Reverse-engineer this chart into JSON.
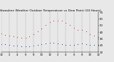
{
  "title": "Milwaukee Weather Outdoor Temperature vs Dew Point (24 Hours)",
  "title_fontsize": 3.2,
  "bg_color": "#e8e8e8",
  "plot_bg_color": "#e8e8e8",
  "grid_color": "#888888",
  "hours": [
    0,
    1,
    2,
    3,
    4,
    5,
    6,
    7,
    8,
    9,
    10,
    11,
    12,
    13,
    14,
    15,
    16,
    17,
    18,
    19,
    20,
    21,
    22,
    23,
    24
  ],
  "temp": [
    38,
    36,
    35,
    34,
    33,
    32,
    32,
    34,
    37,
    41,
    46,
    51,
    55,
    57,
    58,
    57,
    54,
    51,
    47,
    44,
    43,
    41,
    37,
    35,
    33
  ],
  "dew": [
    22,
    22,
    21,
    20,
    20,
    19,
    19,
    19,
    20,
    21,
    22,
    23,
    24,
    24,
    23,
    22,
    21,
    21,
    21,
    22,
    23,
    22,
    21,
    21,
    21
  ],
  "temp_color": "#cc0000",
  "dew_color": "#0000cc",
  "marker_size": 1.5,
  "ylim": [
    10,
    70
  ],
  "yticks": [
    10,
    20,
    30,
    40,
    50,
    60,
    70
  ],
  "ytick_labels": [
    "10",
    "20",
    "30",
    "40",
    "50",
    "60",
    "70"
  ],
  "xtick_positions": [
    0,
    2,
    4,
    6,
    8,
    10,
    12,
    14,
    16,
    18,
    20,
    22,
    24
  ],
  "xtick_labels": [
    "12",
    "2",
    "4",
    "6",
    "8",
    "10",
    "12",
    "2",
    "4",
    "6",
    "8",
    "10",
    "12"
  ],
  "vgrid_positions": [
    0,
    2,
    4,
    6,
    8,
    10,
    12,
    14,
    16,
    18,
    20,
    22,
    24
  ],
  "tick_fontsize": 2.8
}
